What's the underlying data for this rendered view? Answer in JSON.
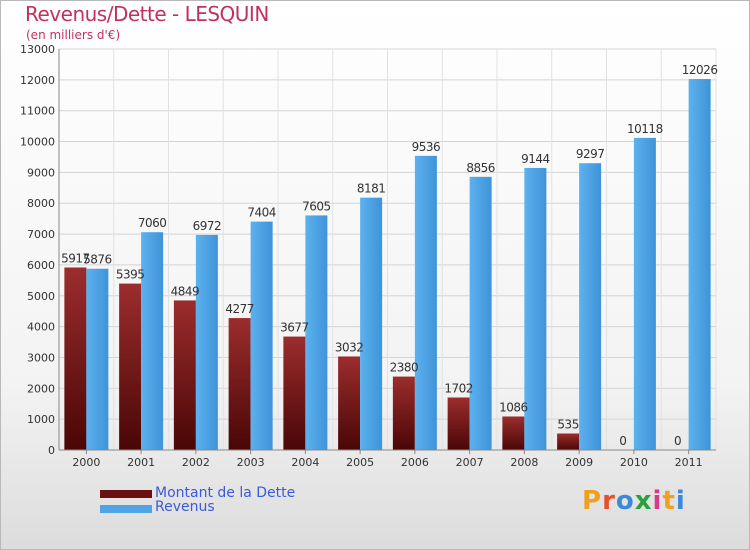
{
  "header": {
    "title": "Revenus/Dette - LESQUIN",
    "subtitle": "(en milliers d'€)"
  },
  "logo": {
    "text": "Proxiti"
  },
  "chart_data": {
    "type": "bar",
    "categories": [
      "2000",
      "2001",
      "2002",
      "2003",
      "2004",
      "2005",
      "2006",
      "2007",
      "2008",
      "2009",
      "2010",
      "2011"
    ],
    "series": [
      {
        "name": "Montant de la Dette",
        "color": "#7a1a1a",
        "values": [
          5917,
          5395,
          4849,
          4277,
          3677,
          3032,
          2380,
          1702,
          1086,
          535,
          0,
          0
        ]
      },
      {
        "name": "Revenus",
        "color": "#4ea4e6",
        "values": [
          5876,
          7060,
          6972,
          7404,
          7605,
          8181,
          9536,
          8856,
          9144,
          9297,
          10118,
          12026
        ]
      }
    ],
    "yticks": [
      0,
      1000,
      2000,
      3000,
      4000,
      5000,
      6000,
      7000,
      8000,
      9000,
      10000,
      11000,
      12000,
      13000
    ],
    "ylim": [
      0,
      13000
    ],
    "grid": true,
    "legend_position": "bottom-left",
    "title": "Revenus/Dette - LESQUIN"
  }
}
